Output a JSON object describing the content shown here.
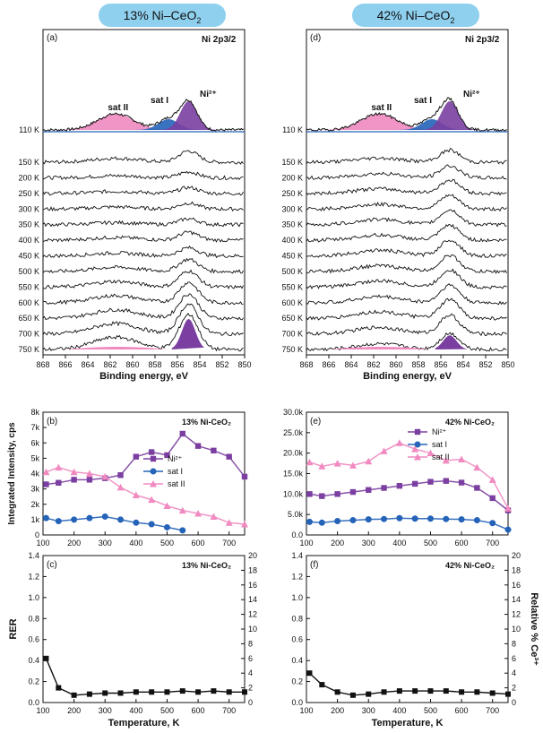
{
  "titles": {
    "left": "13% Ni–CeO",
    "left_sub": "2",
    "right": "42% Ni–CeO",
    "right_sub": "2"
  },
  "colors": {
    "ni2": "#7a3fa0",
    "sat1": "#2463b8",
    "sat2": "#f08ac0",
    "line": "#111111"
  },
  "chart_data": [
    {
      "panel": "(a)",
      "type": "line",
      "subtitle": "Ni 2p3/2",
      "xlabel": "Binding energy, eV",
      "xlim": [
        868,
        850
      ],
      "x_ticks": [
        868,
        866,
        864,
        862,
        860,
        858,
        856,
        854,
        852,
        850
      ],
      "fit_labels": [
        "sat II",
        "sat I",
        "Ni²⁺"
      ],
      "series_labels": [
        "110 K",
        "150 K",
        "200 K",
        "250 K",
        "300 K",
        "350 K",
        "400 K",
        "450 K",
        "500 K",
        "550 K",
        "600 K",
        "650 K",
        "700 K",
        "750 K"
      ],
      "peak_eV": 855.0,
      "peak_heights": [
        0.45,
        0.42,
        0.22,
        0.22,
        0.22,
        0.22,
        0.3,
        0.3,
        0.45,
        0.6,
        0.75,
        0.9,
        1.1,
        1.3
      ],
      "fit_centers_eV": {
        "ni2": 855.0,
        "sat1": 856.8,
        "sat2": 861.5
      }
    },
    {
      "panel": "(d)",
      "type": "line",
      "subtitle": "Ni 2p3/2",
      "xlabel": "Binding energy, eV",
      "xlim": [
        868,
        850
      ],
      "x_ticks": [
        868,
        866,
        864,
        862,
        860,
        858,
        856,
        854,
        852,
        850
      ],
      "fit_labels": [
        "sat II",
        "sat I",
        "Ni²⁺"
      ],
      "series_labels": [
        "110 K",
        "150 K",
        "200 K",
        "250 K",
        "300 K",
        "350 K",
        "400 K",
        "450 K",
        "500 K",
        "550 K",
        "600 K",
        "650 K",
        "700 K",
        "750 K"
      ],
      "peak_eV": 855.2,
      "peak_heights": [
        0.55,
        0.45,
        0.45,
        0.5,
        0.5,
        0.55,
        0.55,
        0.6,
        0.6,
        0.65,
        0.65,
        0.7,
        0.7,
        0.6
      ],
      "fit_centers_eV": {
        "ni2": 855.2,
        "sat1": 856.8,
        "sat2": 861.5
      }
    },
    {
      "panel": "(b)",
      "type": "scatter",
      "label": "13% Ni-CeO₂",
      "xlabel": "",
      "ylabel": "Integrated Intensity, cps",
      "xlim": [
        100,
        750
      ],
      "ylim": [
        0,
        8000
      ],
      "x_ticks": [
        "100",
        "200",
        "300",
        "400",
        "500",
        "600",
        "700"
      ],
      "y_ticks": [
        "0",
        "1k",
        "2k",
        "3k",
        "4k",
        "5k",
        "6k",
        "7k",
        "8k"
      ],
      "x": [
        110,
        150,
        200,
        250,
        300,
        350,
        400,
        450,
        500,
        550,
        600,
        650,
        700,
        750
      ],
      "series": [
        {
          "name": "Ni²⁺",
          "marker": "square",
          "values": [
            3300,
            3400,
            3600,
            3600,
            3700,
            3900,
            5100,
            5400,
            5200,
            6600,
            5800,
            5500,
            5100,
            3800
          ]
        },
        {
          "name": "sat I",
          "marker": "circle",
          "values": [
            1100,
            900,
            1000,
            1100,
            1200,
            1000,
            800,
            700,
            500,
            300,
            null,
            null,
            null,
            null
          ]
        },
        {
          "name": "sat II",
          "marker": "triangle",
          "values": [
            4100,
            4400,
            4100,
            4000,
            3800,
            3100,
            2600,
            2300,
            1900,
            1600,
            1400,
            1200,
            800,
            700
          ]
        }
      ]
    },
    {
      "panel": "(e)",
      "type": "scatter",
      "label": "42% Ni-CeO₂",
      "xlabel": "",
      "ylabel": "",
      "xlim": [
        100,
        750
      ],
      "ylim": [
        0,
        30000
      ],
      "x_ticks": [
        "100",
        "200",
        "300",
        "400",
        "500",
        "600",
        "700"
      ],
      "y_ticks": [
        "0.0",
        "5.0k",
        "10.0k",
        "15.0k",
        "20.0k",
        "25.0k",
        "30.0k"
      ],
      "x": [
        110,
        150,
        200,
        250,
        300,
        350,
        400,
        450,
        500,
        550,
        600,
        650,
        700,
        750
      ],
      "series": [
        {
          "name": "Ni²⁺",
          "marker": "square",
          "values": [
            10000,
            9500,
            10000,
            10500,
            11000,
            11500,
            12000,
            12500,
            13000,
            13200,
            12800,
            11500,
            9000,
            6000
          ]
        },
        {
          "name": "sat I",
          "marker": "circle",
          "values": [
            3200,
            3000,
            3400,
            3600,
            3800,
            3900,
            4100,
            4000,
            4000,
            3900,
            3800,
            3600,
            2900,
            1300
          ]
        },
        {
          "name": "sat II",
          "marker": "triangle",
          "values": [
            17800,
            16800,
            17500,
            17000,
            18000,
            20500,
            22500,
            21000,
            20000,
            18200,
            18500,
            16500,
            13500,
            6500
          ]
        }
      ]
    },
    {
      "panel": "(c)",
      "type": "line",
      "label": "13% Ni-CeO₂",
      "xlabel": "Temperature, K",
      "ylabel": "RER",
      "ylabel_right": "",
      "xlim": [
        100,
        750
      ],
      "ylim": [
        0,
        1.4
      ],
      "ylim_right": [
        0,
        20
      ],
      "x_ticks": [
        "100",
        "200",
        "300",
        "400",
        "500",
        "600",
        "700"
      ],
      "y_ticks": [
        "0.0",
        "0.2",
        "0.4",
        "0.6",
        "0.8",
        "1.0",
        "1.2",
        "1.4"
      ],
      "y_ticks_right": [
        "0",
        "2",
        "4",
        "6",
        "8",
        "10",
        "12",
        "14",
        "16",
        "18",
        "20"
      ],
      "x": [
        110,
        150,
        200,
        250,
        300,
        350,
        400,
        450,
        500,
        550,
        600,
        650,
        700,
        750
      ],
      "values": [
        0.42,
        0.14,
        0.07,
        0.08,
        0.09,
        0.09,
        0.1,
        0.1,
        0.1,
        0.11,
        0.1,
        0.11,
        0.1,
        0.1
      ]
    },
    {
      "panel": "(f)",
      "type": "line",
      "label": "42% Ni-CeO₂",
      "xlabel": "Temperature, K",
      "ylabel": "",
      "ylabel_right": "Relative % Ce³⁺",
      "xlim": [
        100,
        750
      ],
      "ylim": [
        0,
        1.4
      ],
      "ylim_right": [
        0,
        20
      ],
      "x_ticks": [
        "100",
        "200",
        "300",
        "400",
        "500",
        "600",
        "700"
      ],
      "y_ticks": [
        "0.0",
        "0.2",
        "0.4",
        "0.6",
        "0.8",
        "1.0",
        "1.2",
        "1.4"
      ],
      "y_ticks_right": [
        "0",
        "2",
        "4",
        "6",
        "8",
        "10",
        "12",
        "14",
        "16",
        "18",
        "20"
      ],
      "x": [
        110,
        150,
        200,
        250,
        300,
        350,
        400,
        450,
        500,
        550,
        600,
        650,
        700,
        750
      ],
      "values": [
        0.28,
        0.17,
        0.1,
        0.07,
        0.08,
        0.1,
        0.11,
        0.11,
        0.11,
        0.11,
        0.1,
        0.1,
        0.09,
        0.08
      ]
    }
  ]
}
